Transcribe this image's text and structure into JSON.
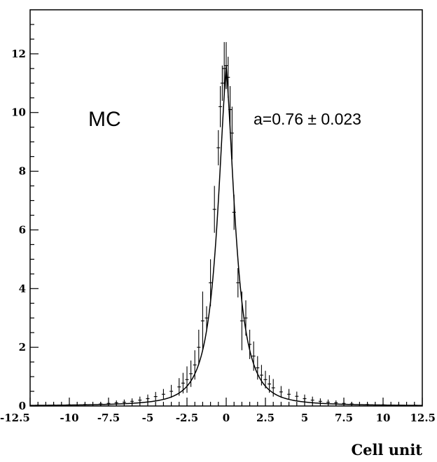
{
  "chart_data": {
    "type": "scatter",
    "title": "",
    "xlabel": "Cell unit",
    "ylabel": "",
    "xlim": [
      -12.5,
      12.5
    ],
    "ylim": [
      0,
      13.5
    ],
    "grid": false,
    "xticks": [
      -12.5,
      -10,
      -7.5,
      -5,
      -2.5,
      0,
      2.5,
      5,
      7.5,
      10,
      12.5
    ],
    "xtick_labels": [
      "-12.5",
      "-10",
      "-7.5",
      "-5",
      "-2.5",
      "0",
      "2.5",
      "5",
      "7.5",
      "10",
      "12.5"
    ],
    "yticks": [
      0,
      2,
      4,
      6,
      8,
      10,
      12
    ],
    "ytick_labels": [
      "0",
      "2",
      "4",
      "6",
      "8",
      "10",
      "12"
    ],
    "annotations": [
      "MC",
      "a=0.76 ± 0.023"
    ],
    "series": [
      {
        "kind": "data_points_with_errors",
        "x": [
          -12.0,
          -11.0,
          -10.0,
          -9.0,
          -8.0,
          -7.5,
          -7.0,
          -6.5,
          -6.0,
          -5.5,
          -5.0,
          -4.5,
          -4.0,
          -3.5,
          -3.0,
          -2.75,
          -2.5,
          -2.25,
          -2.0,
          -1.75,
          -1.5,
          -1.25,
          -1.0,
          -0.75,
          -0.5,
          -0.375,
          -0.25,
          -0.125,
          0.0,
          0.125,
          0.25,
          0.375,
          0.5,
          0.75,
          1.0,
          1.25,
          1.5,
          1.75,
          2.0,
          2.25,
          2.5,
          2.75,
          3.0,
          3.5,
          4.0,
          4.5,
          5.0,
          5.5,
          6.0,
          6.5,
          7.0,
          7.5,
          8.0,
          9.0,
          10.0,
          11.0,
          12.0
        ],
        "y": [
          0.02,
          0.03,
          0.04,
          0.05,
          0.07,
          0.09,
          0.11,
          0.13,
          0.16,
          0.2,
          0.25,
          0.32,
          0.4,
          0.5,
          0.65,
          0.78,
          0.9,
          1.1,
          1.4,
          2.0,
          2.9,
          3.0,
          4.2,
          6.7,
          8.8,
          10.2,
          11.0,
          11.5,
          11.6,
          11.2,
          10.1,
          9.3,
          6.6,
          4.2,
          2.9,
          3.0,
          2.1,
          1.7,
          1.3,
          1.05,
          0.9,
          0.75,
          0.62,
          0.48,
          0.4,
          0.33,
          0.25,
          0.2,
          0.16,
          0.13,
          0.11,
          0.09,
          0.07,
          0.05,
          0.04,
          0.03,
          0.02
        ],
        "err": [
          0.05,
          0.05,
          0.05,
          0.05,
          0.06,
          0.07,
          0.08,
          0.09,
          0.1,
          0.12,
          0.14,
          0.16,
          0.18,
          0.22,
          0.3,
          0.35,
          0.45,
          0.45,
          0.5,
          0.6,
          1.0,
          0.4,
          0.8,
          0.8,
          0.6,
          0.7,
          0.6,
          0.9,
          0.8,
          0.7,
          0.8,
          0.9,
          0.6,
          0.5,
          1.0,
          0.6,
          0.5,
          0.5,
          0.4,
          0.35,
          0.3,
          0.3,
          0.3,
          0.2,
          0.18,
          0.16,
          0.14,
          0.12,
          0.1,
          0.09,
          0.08,
          0.07,
          0.06,
          0.05,
          0.05,
          0.05,
          0.05
        ]
      }
    ],
    "fit": {
      "kind": "curve",
      "a": 0.76,
      "a_error": 0.023
    }
  }
}
